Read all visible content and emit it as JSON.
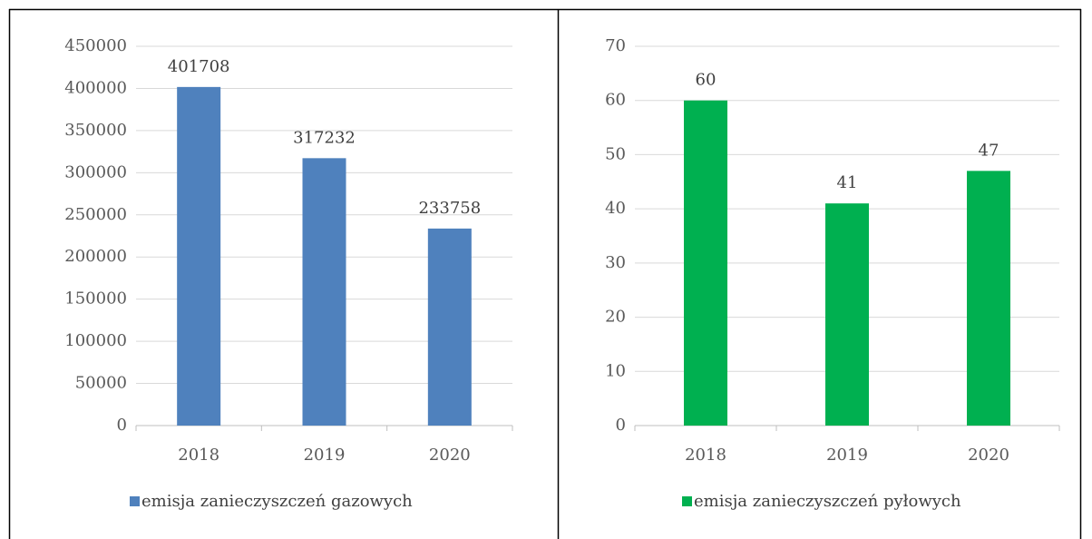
{
  "chart_data": [
    {
      "type": "bar",
      "categories": [
        "2018",
        "2019",
        "2020"
      ],
      "series": [
        {
          "name": "emisja zanieczyszczeń gazowych",
          "color": "#4f81bd",
          "values": [
            401708,
            317232,
            233758
          ]
        }
      ],
      "ylim": [
        0,
        450000
      ],
      "yticks": [
        0,
        50000,
        100000,
        150000,
        200000,
        250000,
        300000,
        350000,
        400000,
        450000
      ],
      "grid": true,
      "legend": "bottom"
    },
    {
      "type": "bar",
      "categories": [
        "2018",
        "2019",
        "2020"
      ],
      "series": [
        {
          "name": "emisja zanieczyszczeń pyłowych",
          "color": "#00b050",
          "values": [
            60,
            41,
            47
          ]
        }
      ],
      "ylim": [
        0,
        70
      ],
      "yticks": [
        0,
        10,
        20,
        30,
        40,
        50,
        60,
        70
      ],
      "grid": true,
      "legend": "bottom"
    }
  ]
}
